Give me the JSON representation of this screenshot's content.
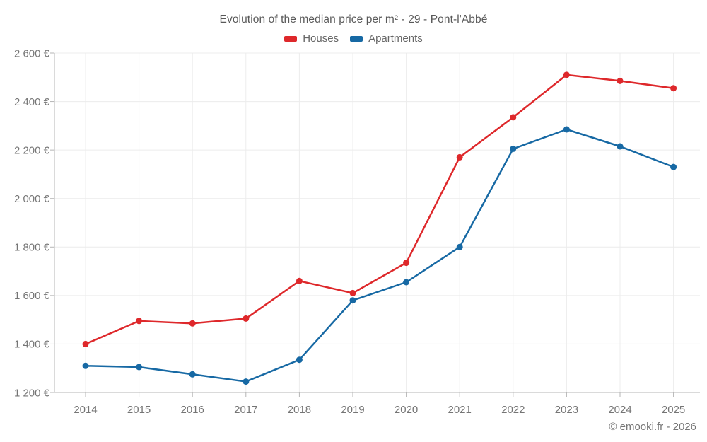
{
  "footer": {
    "credit": "© emooki.fr - 2026"
  },
  "chart_data": {
    "type": "line",
    "title": "Evolution of the median price per m² - 29 - Pont-l'Abbé",
    "categories": [
      "2014",
      "2015",
      "2016",
      "2017",
      "2018",
      "2019",
      "2020",
      "2021",
      "2022",
      "2023",
      "2024",
      "2025"
    ],
    "series": [
      {
        "name": "Houses",
        "color": "#de282b",
        "values": [
          1400,
          1495,
          1485,
          1505,
          1660,
          1610,
          1735,
          2170,
          2335,
          2510,
          2485,
          2455
        ]
      },
      {
        "name": "Apartments",
        "color": "#1769a4",
        "values": [
          1310,
          1305,
          1275,
          1245,
          1335,
          1580,
          1655,
          1800,
          2205,
          2285,
          2215,
          2130
        ]
      }
    ],
    "xlabel": "",
    "ylabel": "",
    "ylim": [
      1200,
      2600
    ],
    "ytick_step": 200,
    "ytick_labels": [
      "1 200 €",
      "1 400 €",
      "1 600 €",
      "1 800 €",
      "2 000 €",
      "2 200 €",
      "2 400 €",
      "2 600 €"
    ],
    "grid": true,
    "legend_position": "top",
    "colors": {
      "grid": "#ececec",
      "axis": "#b5b5b5",
      "tick_text": "#757575",
      "title_text": "#595959"
    }
  }
}
